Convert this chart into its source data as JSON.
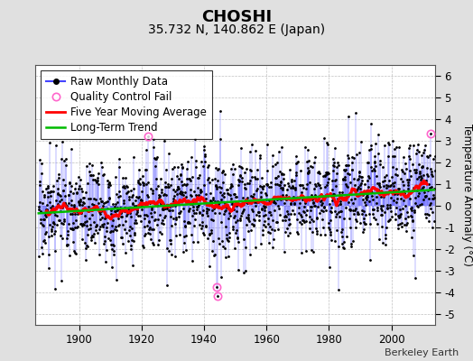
{
  "title": "CHOSHI",
  "subtitle": "35.732 N, 140.862 E (Japan)",
  "ylabel": "Temperature Anomaly (°C)",
  "credit": "Berkeley Earth",
  "start_year": 1887,
  "end_year": 2013,
  "ylim": [
    -5.5,
    6.5
  ],
  "yticks": [
    -5,
    -4,
    -3,
    -2,
    -1,
    0,
    1,
    2,
    3,
    4,
    5,
    6
  ],
  "xticks": [
    1900,
    1920,
    1940,
    1960,
    1980,
    2000
  ],
  "background_color": "#e0e0e0",
  "plot_bg_color": "#ffffff",
  "raw_line_color": "#4444ff",
  "raw_dot_color": "#000000",
  "moving_avg_color": "#ff0000",
  "trend_color": "#00bb00",
  "qc_fail_color": "#ff66cc",
  "legend_fontsize": 8.5,
  "title_fontsize": 13,
  "subtitle_fontsize": 10,
  "tick_fontsize": 8.5
}
